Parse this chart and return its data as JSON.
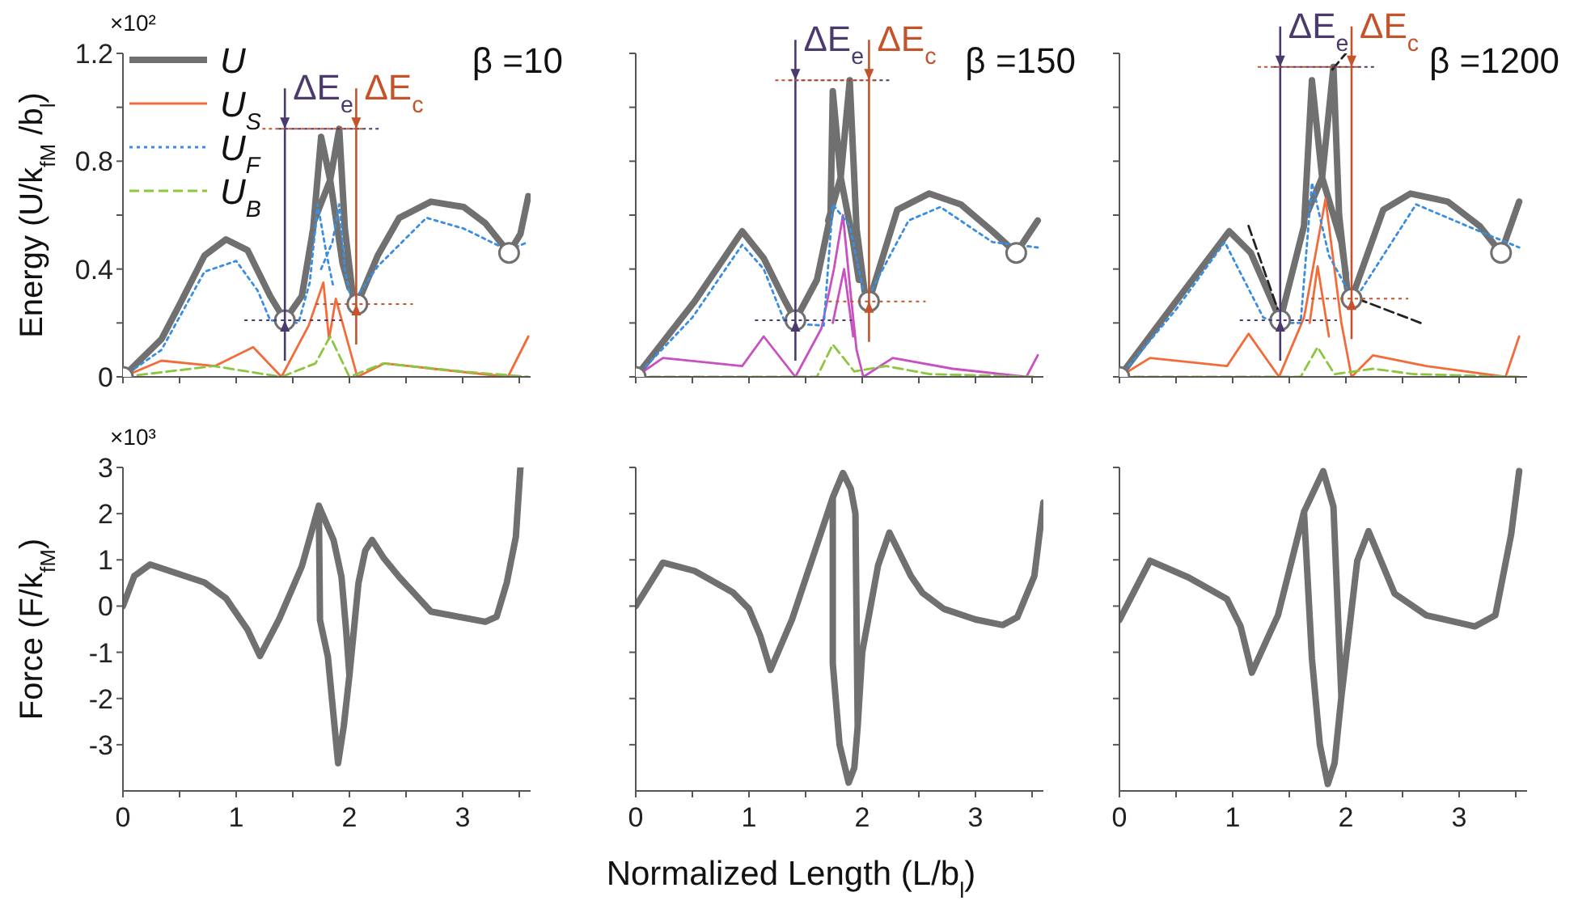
{
  "chart_data": [
    {
      "type": "line",
      "title": "β =10",
      "ylabel": "Energy (U/k$_{fM}$ /b$_{l}$)",
      "xlim": [
        0,
        3.6
      ],
      "ylim": [
        0,
        1.2
      ],
      "xticks": [
        {
          "value": 0,
          "label": null
        },
        {
          "value": 0.5,
          "label": null
        },
        {
          "value": 1,
          "label": null
        },
        {
          "value": 1.5,
          "label": null
        },
        {
          "value": 2,
          "label": null
        },
        {
          "value": 2.5,
          "label": null
        },
        {
          "value": 3,
          "label": null
        },
        {
          "value": 3.5,
          "label": null
        }
      ],
      "yticks": [
        0,
        {
          "value": 0.2,
          "label": null
        },
        0.4,
        {
          "value": 0.6,
          "label": null
        },
        0.8,
        {
          "value": 1.0,
          "label": null
        },
        1.2
      ],
      "tick_labels": "y",
      "legend": "top left",
      "annotations": [
        "×10²"
      ],
      "ref_lines": [
        {
          "axis": "x",
          "value": 1.43,
          "label": "ΔE$_{e}$",
          "color": "#4b3a6e"
        },
        {
          "axis": "x",
          "value": 2.06,
          "label": "ΔE$_{c}$",
          "color": "#c4532b"
        },
        {
          "axis": "y",
          "value": 0.21,
          "color": "#4b3a6e",
          "line_style": "dotted"
        },
        {
          "axis": "y",
          "value": 0.27,
          "color": "#c4532b",
          "line_style": "dotted"
        }
      ],
      "series": [
        {
          "name": "U",
          "color": "#707070",
          "line_style": "solid",
          "x": [
            0,
            0.34,
            0.49,
            0.72,
            0.91,
            1.1,
            1.3,
            1.43,
            1.58,
            1.68,
            1.75,
            1.83,
            1.94,
            2.0,
            null,
            1.69,
            1.83,
            1.91,
            1.96,
            2.03,
            2.07,
            2.25,
            2.44,
            2.72,
            3.01,
            3.2,
            3.41,
            3.51,
            3.58
          ],
          "values": [
            0,
            0.14,
            0.26,
            0.45,
            0.51,
            0.47,
            0.3,
            0.21,
            0.3,
            0.55,
            0.89,
            0.73,
            0.42,
            0.33,
            null,
            0.58,
            0.73,
            0.92,
            0.55,
            0.3,
            0.27,
            0.45,
            0.59,
            0.65,
            0.63,
            0.57,
            0.46,
            0.53,
            0.67
          ]
        },
        {
          "name": "U$_{S}$",
          "color": "#f26b3a",
          "line_style": "solid",
          "x": [
            0,
            0.34,
            0.81,
            1.15,
            1.4,
            1.64,
            1.77,
            1.82,
            1.88,
            2.07,
            2.31,
            2.74,
            3.4,
            3.58
          ],
          "values": [
            0,
            0.06,
            0.04,
            0.11,
            0,
            0.19,
            0.35,
            0.14,
            0.29,
            0,
            0.05,
            0.03,
            0,
            0.15
          ]
        },
        {
          "name": "U$_{F}$",
          "color": "#3a8ee0",
          "line_style": "dotted",
          "x": [
            0,
            0.34,
            0.72,
            1.0,
            1.19,
            1.3,
            1.55,
            1.65,
            1.72,
            1.8,
            1.86,
            null,
            1.75,
            1.85,
            1.91,
            1.96,
            2.02,
            2.25,
            2.68,
            3.01,
            3.4,
            3.58
          ],
          "values": [
            0,
            0.1,
            0.39,
            0.43,
            0.32,
            0.21,
            0.2,
            0.35,
            0.64,
            0.45,
            0.33,
            null,
            0.4,
            0.5,
            0.64,
            0.4,
            0.27,
            0.41,
            0.59,
            0.55,
            0.47,
            0.5
          ]
        },
        {
          "name": "U$_{B}$",
          "color": "#8cc63f",
          "line_style": "dashed",
          "x": [
            0,
            0.8,
            1.4,
            1.7,
            1.83,
            2.0,
            2.3,
            3.0,
            3.58
          ],
          "values": [
            0,
            0.04,
            0,
            0.05,
            0.15,
            0,
            0.05,
            0.02,
            0
          ]
        },
        {
          "type": "scatter",
          "color": "#707070",
          "marker": "circle",
          "x": [
            0,
            1.43,
            2.07,
            3.41
          ],
          "values": [
            0,
            0.21,
            0.27,
            0.46
          ]
        }
      ]
    },
    {
      "type": "line",
      "title": "β =150",
      "xlim": [
        0,
        3.6
      ],
      "ylim": [
        0,
        1.2
      ],
      "xticks": [
        {
          "value": 0,
          "label": null
        },
        {
          "value": 0.5,
          "label": null
        },
        {
          "value": 1,
          "label": null
        },
        {
          "value": 1.5,
          "label": null
        },
        {
          "value": 2,
          "label": null
        },
        {
          "value": 2.5,
          "label": null
        },
        {
          "value": 3,
          "label": null
        },
        {
          "value": 3.5,
          "label": null
        }
      ],
      "yticks": [
        {
          "value": 0,
          "label": null
        },
        {
          "value": 0.2,
          "label": null
        },
        {
          "value": 0.4,
          "label": null
        },
        {
          "value": 0.6,
          "label": null
        },
        {
          "value": 0.8,
          "label": null
        },
        {
          "value": 1.0,
          "label": null
        },
        {
          "value": 1.2,
          "label": null
        }
      ],
      "tick_labels": false,
      "ref_lines": [
        {
          "axis": "x",
          "value": 1.41,
          "label": "ΔE$_{e}$",
          "color": "#4b3a6e"
        },
        {
          "axis": "x",
          "value": 2.06,
          "label": "ΔE$_{c}$",
          "color": "#c4532b"
        },
        {
          "axis": "y",
          "value": 0.21,
          "color": "#4b3a6e",
          "line_style": "dotted"
        },
        {
          "axis": "y",
          "value": 0.28,
          "color": "#c4532b",
          "line_style": "dotted"
        }
      ],
      "series": [
        {
          "color": "#707070",
          "line_style": "solid",
          "x": [
            0,
            0.52,
            0.94,
            1.13,
            1.32,
            1.41,
            1.6,
            1.72,
            1.74,
            1.81,
            1.92,
            1.97,
            null,
            1.7,
            1.81,
            1.89,
            1.95,
            2.02,
            2.06,
            2.31,
            2.59,
            2.87,
            3.15,
            3.36,
            3.55
          ],
          "values": [
            0,
            0.28,
            0.54,
            0.44,
            0.28,
            0.21,
            0.36,
            0.6,
            1.06,
            0.74,
            0.5,
            0.36,
            null,
            0.58,
            0.74,
            1.1,
            0.55,
            0.32,
            0.28,
            0.62,
            0.68,
            0.64,
            0.54,
            0.46,
            0.58
          ]
        },
        {
          "color": "#c850c0",
          "line_style": "solid",
          "x": [
            0,
            0.24,
            0.94,
            1.13,
            1.41,
            1.64,
            1.75,
            1.83,
            1.9,
            1.95,
            2.01,
            2.27,
            2.8,
            3.45,
            3.55,
            null,
            1.74,
            1.84,
            1.92
          ],
          "values": [
            0,
            0.07,
            0.04,
            0.15,
            0,
            0.18,
            0.4,
            0.6,
            0.3,
            0.1,
            0,
            0.07,
            0.03,
            0,
            0.08,
            null,
            0.2,
            0.4,
            0.15
          ]
        },
        {
          "color": "#3a8ee0",
          "line_style": "dotted",
          "x": [
            0,
            0.5,
            0.94,
            1.13,
            1.32,
            1.66,
            1.74,
            1.89,
            2.03,
            2.41,
            2.69,
            3.15,
            3.55
          ],
          "values": [
            0,
            0.22,
            0.49,
            0.4,
            0.2,
            0.19,
            0.64,
            0.56,
            0.28,
            0.58,
            0.63,
            0.5,
            0.48
          ]
        },
        {
          "color": "#8cc63f",
          "line_style": "dashed",
          "x": [
            0,
            1.6,
            1.74,
            1.93,
            2.21,
            2.6,
            3.55
          ],
          "values": [
            0,
            0,
            0.12,
            0.02,
            0.04,
            0.01,
            0
          ]
        },
        {
          "type": "scatter",
          "color": "#707070",
          "marker": "circle",
          "x": [
            0,
            1.41,
            2.06,
            3.36
          ],
          "values": [
            0,
            0.21,
            0.28,
            0.46
          ]
        }
      ]
    },
    {
      "type": "line",
      "title": "β =1200",
      "xlim": [
        0,
        3.6
      ],
      "ylim": [
        0,
        1.2
      ],
      "xticks": [
        {
          "value": 0,
          "label": null
        },
        {
          "value": 0.5,
          "label": null
        },
        {
          "value": 1,
          "label": null
        },
        {
          "value": 1.5,
          "label": null
        },
        {
          "value": 2,
          "label": null
        },
        {
          "value": 2.5,
          "label": null
        },
        {
          "value": 3,
          "label": null
        },
        {
          "value": 3.5,
          "label": null
        }
      ],
      "yticks": [
        {
          "value": 0,
          "label": null
        },
        {
          "value": 0.2,
          "label": null
        },
        {
          "value": 0.4,
          "label": null
        },
        {
          "value": 0.6,
          "label": null
        },
        {
          "value": 0.8,
          "label": null
        },
        {
          "value": 1.0,
          "label": null
        },
        {
          "value": 1.2,
          "label": null
        }
      ],
      "tick_labels": false,
      "ref_lines": [
        {
          "axis": "x",
          "value": 1.42,
          "label": "ΔE$_{e}$",
          "color": "#4b3a6e"
        },
        {
          "axis": "x",
          "value": 2.05,
          "label": "ΔE$_{c}$",
          "color": "#c4532b"
        },
        {
          "axis": "y",
          "value": 0.21,
          "color": "#4b3a6e",
          "line_style": "dotted"
        },
        {
          "axis": "y",
          "value": 0.29,
          "color": "#c4532b",
          "line_style": "dotted"
        }
      ],
      "series": [
        {
          "color": "#707070",
          "line_style": "solid",
          "x": [
            0,
            0.5,
            0.97,
            1.16,
            1.42,
            1.63,
            1.7,
            1.79,
            1.96,
            2.0,
            null,
            1.65,
            1.79,
            1.89,
            1.94,
            2.01,
            2.05,
            2.33,
            2.57,
            2.9,
            3.18,
            3.37,
            3.53
          ],
          "values": [
            0,
            0.28,
            0.54,
            0.46,
            0.21,
            0.56,
            1.1,
            0.74,
            0.5,
            0.38,
            null,
            0.6,
            0.74,
            1.15,
            0.6,
            0.33,
            0.29,
            0.62,
            0.68,
            0.65,
            0.56,
            0.46,
            0.65
          ]
        },
        {
          "color": "#f26b3a",
          "line_style": "solid",
          "x": [
            0,
            0.27,
            0.95,
            1.14,
            1.41,
            1.63,
            1.82,
            1.96,
            2.05,
            2.24,
            2.71,
            3.41,
            3.53,
            null,
            1.68,
            1.75,
            1.85
          ],
          "values": [
            0,
            0.07,
            0.04,
            0.16,
            0,
            0.22,
            0.66,
            0.2,
            0,
            0.08,
            0.04,
            0,
            0.15,
            null,
            0.2,
            0.41,
            0.15
          ]
        },
        {
          "color": "#3a8ee0",
          "line_style": "dotted",
          "x": [
            0,
            0.5,
            0.93,
            1.27,
            1.41,
            1.6,
            1.7,
            1.85,
            2.07,
            2.62,
            3.18,
            3.53
          ],
          "values": [
            0,
            0.25,
            0.5,
            0.22,
            0.2,
            0.2,
            0.72,
            0.45,
            0.28,
            0.64,
            0.54,
            0.48
          ]
        },
        {
          "color": "#8cc63f",
          "line_style": "dashed",
          "x": [
            0,
            1.6,
            1.75,
            1.9,
            2.24,
            2.6,
            3.53
          ],
          "values": [
            0,
            0,
            0.11,
            0.01,
            0.03,
            0.01,
            0
          ]
        },
        {
          "color": "#222222",
          "line_style": "dashed",
          "x": [
            1.14,
            1.44,
            null,
            1.88,
            2.0,
            null,
            2.1,
            2.66
          ],
          "values": [
            0.56,
            0.2,
            null,
            1.14,
            1.2,
            null,
            0.29,
            0.2
          ]
        },
        {
          "type": "scatter",
          "color": "#707070",
          "marker": "circle",
          "x": [
            0,
            1.42,
            2.05,
            3.37
          ],
          "values": [
            0,
            0.21,
            0.29,
            0.46
          ]
        }
      ]
    },
    {
      "type": "line",
      "ylabel": "Force (F/k$_{fM}$)",
      "xlim": [
        0,
        3.6
      ],
      "ylim": [
        -4,
        3
      ],
      "xticks": [
        0,
        {
          "value": 0.5,
          "label": null
        },
        1,
        {
          "value": 1.5,
          "label": null
        },
        2,
        {
          "value": 2.5,
          "label": null
        },
        3,
        {
          "value": 3.5,
          "label": null
        }
      ],
      "yticks": [
        -3,
        -2,
        -1,
        0,
        1,
        2,
        3
      ],
      "annotations": [
        "×10³"
      ],
      "series": [
        {
          "color": "#707070",
          "line_style": "solid",
          "x": [
            0,
            0.1,
            0.24,
            0.72,
            0.91,
            1.1,
            1.21,
            1.38,
            1.58,
            1.73,
            1.86,
            1.93,
            1.97,
            2.0,
            2.04,
            2.08,
            2.14,
            2.2,
            2.3,
            2.44,
            2.72,
            3.2,
            3.3,
            3.39,
            3.47,
            3.51,
            null,
            1.73,
            1.74,
            1.81,
            1.9,
            1.95,
            2.0
          ],
          "values": [
            0,
            0.65,
            0.9,
            0.51,
            0.17,
            -0.51,
            -1.08,
            -0.28,
            0.86,
            2.17,
            1.43,
            0.63,
            -0.5,
            -1.5,
            -0.5,
            0.5,
            1.2,
            1.43,
            1.05,
            0.63,
            -0.12,
            -0.34,
            -0.23,
            0.51,
            1.5,
            3.0,
            null,
            2.17,
            -0.3,
            -1.1,
            -3.4,
            -2.6,
            -1.5
          ]
        }
      ]
    },
    {
      "type": "line",
      "xlabel": "Normalized Length (L/b$_{l}$)",
      "xlim": [
        0,
        3.6
      ],
      "ylim": [
        -4,
        3
      ],
      "xticks": [
        0,
        {
          "value": 0.5,
          "label": null
        },
        1,
        {
          "value": 1.5,
          "label": null
        },
        2,
        {
          "value": 2.5,
          "label": null
        },
        3,
        {
          "value": 3.5,
          "label": null
        }
      ],
      "yticks": [
        {
          "value": -3,
          "label": null
        },
        {
          "value": -2,
          "label": null
        },
        {
          "value": -1,
          "label": null
        },
        {
          "value": 0,
          "label": null
        },
        {
          "value": 1,
          "label": null
        },
        {
          "value": 2,
          "label": null
        },
        {
          "value": 3,
          "label": null
        }
      ],
      "tick_labels": "x",
      "series": [
        {
          "color": "#707070",
          "line_style": "solid",
          "x": [
            0,
            0.24,
            0.52,
            0.86,
            1.0,
            1.1,
            1.19,
            1.38,
            1.62,
            1.74,
            1.83,
            1.9,
            1.94,
            1.96,
            2.0,
            2.14,
            2.24,
            2.43,
            2.53,
            2.72,
            3.0,
            3.24,
            3.37,
            3.52,
            3.6,
            null,
            1.74,
            1.74,
            1.8,
            1.88,
            1.93,
            1.96
          ],
          "values": [
            0,
            0.94,
            0.76,
            0.29,
            -0.06,
            -0.65,
            -1.38,
            -0.29,
            1.47,
            2.35,
            2.88,
            2.53,
            2.0,
            -2.6,
            -1.0,
            0.88,
            1.59,
            0.65,
            0.29,
            -0.06,
            -0.29,
            -0.41,
            -0.24,
            0.65,
            2.24,
            null,
            2.35,
            -1.24,
            -3.0,
            -3.82,
            -3.5,
            -2.6
          ]
        }
      ]
    },
    {
      "type": "line",
      "xlim": [
        0,
        3.6
      ],
      "ylim": [
        -4,
        3
      ],
      "xticks": [
        0,
        {
          "value": 0.5,
          "label": null
        },
        1,
        {
          "value": 1.5,
          "label": null
        },
        2,
        {
          "value": 2.5,
          "label": null
        },
        3,
        {
          "value": 3.5,
          "label": null
        }
      ],
      "yticks": [
        {
          "value": -3,
          "label": null
        },
        {
          "value": -2,
          "label": null
        },
        {
          "value": -1,
          "label": null
        },
        {
          "value": 0,
          "label": null
        },
        {
          "value": 1,
          "label": null
        },
        {
          "value": 2,
          "label": null
        },
        {
          "value": 3,
          "label": null
        }
      ],
      "tick_labels": "x",
      "series": [
        {
          "color": "#707070",
          "line_style": "solid",
          "x": [
            0,
            0.27,
            0.61,
            0.95,
            1.07,
            1.17,
            1.4,
            1.63,
            1.8,
            1.89,
            1.96,
            2.03,
            2.1,
            2.2,
            2.43,
            2.71,
            3.14,
            3.32,
            3.46,
            3.53,
            null,
            1.63,
            1.7,
            1.77,
            1.84,
            1.9,
            1.96
          ],
          "values": [
            -0.3,
            0.98,
            0.62,
            0.15,
            -0.44,
            -1.44,
            -0.2,
            2.04,
            2.92,
            2.15,
            -1.96,
            -0.5,
            0.98,
            1.62,
            0.27,
            -0.2,
            -0.44,
            -0.2,
            1.56,
            2.92,
            null,
            2.04,
            -1.14,
            -3.0,
            -3.85,
            -3.4,
            -1.96
          ]
        }
      ]
    }
  ]
}
